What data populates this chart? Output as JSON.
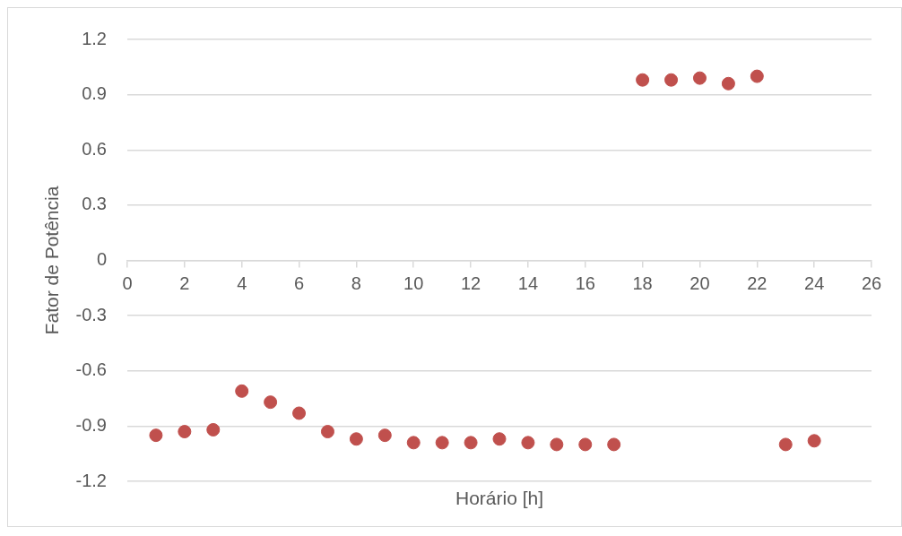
{
  "chart_data": {
    "type": "scatter",
    "xlabel": "Horário [h]",
    "ylabel": "Fator de Potência",
    "x": [
      1,
      2,
      3,
      4,
      5,
      6,
      7,
      8,
      9,
      10,
      11,
      12,
      13,
      14,
      15,
      16,
      17,
      18,
      19,
      20,
      21,
      22,
      23,
      24
    ],
    "values": [
      -0.95,
      -0.93,
      -0.92,
      -0.71,
      -0.77,
      -0.83,
      -0.93,
      -0.97,
      -0.95,
      -0.99,
      -0.99,
      -0.99,
      -0.97,
      -0.99,
      -1.0,
      -1.0,
      -1.0,
      0.98,
      0.98,
      0.99,
      0.96,
      1.0,
      -1.0,
      -0.98
    ],
    "color": "#c0504d",
    "marker": "circle",
    "xlim": [
      0,
      26
    ],
    "xticks": [
      0,
      2,
      4,
      6,
      8,
      10,
      12,
      14,
      16,
      18,
      20,
      22,
      24,
      26
    ],
    "ylim": [
      -1.2,
      1.2
    ],
    "yticks": [
      -1.2,
      -0.9,
      -0.6,
      -0.3,
      0,
      0.3,
      0.6,
      0.9,
      1.2
    ],
    "grid": "y",
    "legend": false
  }
}
